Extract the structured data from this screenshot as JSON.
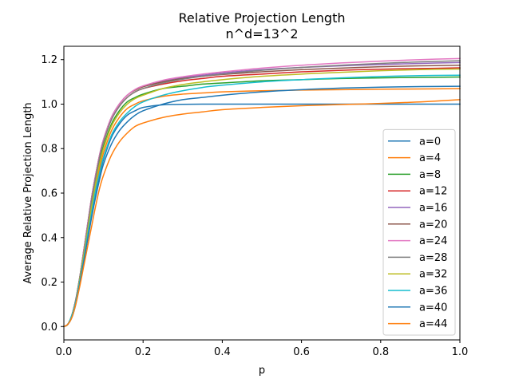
{
  "chart_data": {
    "type": "line",
    "title": "Relative Projection Length",
    "subtitle": "n^d=13^2",
    "xlabel": "p",
    "ylabel": "Average Relative Projection Length",
    "xlim": [
      0.0,
      1.0
    ],
    "ylim": [
      -0.06,
      1.26
    ],
    "xticks": [
      0.0,
      0.2,
      0.4,
      0.6,
      0.8,
      1.0
    ],
    "xtick_labels": [
      "0.0",
      "0.2",
      "0.4",
      "0.6",
      "0.8",
      "1.0"
    ],
    "yticks": [
      0.0,
      0.2,
      0.4,
      0.6,
      0.8,
      1.0,
      1.2
    ],
    "ytick_labels": [
      "0.0",
      "0.2",
      "0.4",
      "0.6",
      "0.8",
      "1.0",
      "1.2"
    ],
    "grid": false,
    "legend_position": "lower-right",
    "x": [
      0,
      0.01,
      0.02,
      0.03,
      0.04,
      0.05,
      0.06,
      0.07,
      0.08,
      0.09,
      0.1,
      0.12,
      0.14,
      0.16,
      0.18,
      0.2,
      0.25,
      0.3,
      0.35,
      0.4,
      0.5,
      0.6,
      0.7,
      0.8,
      0.9,
      1.0
    ],
    "series": [
      {
        "name": "a=0",
        "color": "#1f77b4",
        "values": [
          0,
          0.01,
          0.05,
          0.11,
          0.2,
          0.3,
          0.41,
          0.51,
          0.6,
          0.68,
          0.75,
          0.85,
          0.91,
          0.95,
          0.97,
          0.985,
          0.997,
          0.999,
          1.0,
          1.0,
          1.0,
          1.0,
          1.0,
          1.0,
          1.0,
          1.0
        ]
      },
      {
        "name": "a=4",
        "color": "#ff7f0e",
        "values": [
          0,
          0.01,
          0.05,
          0.11,
          0.2,
          0.31,
          0.42,
          0.53,
          0.63,
          0.71,
          0.78,
          0.88,
          0.94,
          0.98,
          1.0,
          1.015,
          1.035,
          1.045,
          1.05,
          1.055,
          1.06,
          1.063,
          1.065,
          1.067,
          1.068,
          1.07
        ]
      },
      {
        "name": "a=8",
        "color": "#2ca02c",
        "values": [
          0,
          0.01,
          0.05,
          0.12,
          0.21,
          0.32,
          0.44,
          0.55,
          0.65,
          0.74,
          0.81,
          0.91,
          0.97,
          1.01,
          1.03,
          1.045,
          1.07,
          1.08,
          1.09,
          1.095,
          1.105,
          1.11,
          1.115,
          1.118,
          1.12,
          1.122
        ]
      },
      {
        "name": "a=12",
        "color": "#d62728",
        "values": [
          0,
          0.01,
          0.05,
          0.12,
          0.22,
          0.33,
          0.45,
          0.57,
          0.67,
          0.76,
          0.83,
          0.93,
          0.99,
          1.03,
          1.055,
          1.07,
          1.09,
          1.105,
          1.115,
          1.125,
          1.135,
          1.145,
          1.152,
          1.157,
          1.16,
          1.163
        ]
      },
      {
        "name": "a=16",
        "color": "#9467bd",
        "values": [
          0,
          0.01,
          0.05,
          0.12,
          0.22,
          0.34,
          0.46,
          0.58,
          0.68,
          0.77,
          0.84,
          0.94,
          1.0,
          1.04,
          1.065,
          1.08,
          1.105,
          1.12,
          1.13,
          1.14,
          1.155,
          1.165,
          1.172,
          1.178,
          1.183,
          1.187
        ]
      },
      {
        "name": "a=20",
        "color": "#8c564b",
        "values": [
          0,
          0.01,
          0.05,
          0.12,
          0.22,
          0.34,
          0.46,
          0.58,
          0.68,
          0.77,
          0.84,
          0.94,
          1.0,
          1.04,
          1.063,
          1.078,
          1.1,
          1.115,
          1.125,
          1.133,
          1.145,
          1.155,
          1.162,
          1.168,
          1.172,
          1.175
        ]
      },
      {
        "name": "a=24",
        "color": "#e377c2",
        "values": [
          0,
          0.01,
          0.05,
          0.12,
          0.22,
          0.34,
          0.46,
          0.58,
          0.68,
          0.77,
          0.84,
          0.94,
          1.0,
          1.04,
          1.066,
          1.082,
          1.107,
          1.123,
          1.135,
          1.145,
          1.162,
          1.175,
          1.185,
          1.193,
          1.2,
          1.205
        ]
      },
      {
        "name": "a=28",
        "color": "#7f7f7f",
        "values": [
          0,
          0.01,
          0.05,
          0.12,
          0.22,
          0.33,
          0.45,
          0.57,
          0.67,
          0.76,
          0.83,
          0.93,
          0.99,
          1.03,
          1.055,
          1.07,
          1.095,
          1.112,
          1.125,
          1.135,
          1.152,
          1.165,
          1.175,
          1.183,
          1.19,
          1.195
        ]
      },
      {
        "name": "a=32",
        "color": "#bcbd22",
        "values": [
          0,
          0.01,
          0.05,
          0.11,
          0.21,
          0.32,
          0.43,
          0.54,
          0.64,
          0.73,
          0.8,
          0.9,
          0.96,
          1.0,
          1.025,
          1.04,
          1.07,
          1.088,
          1.1,
          1.11,
          1.125,
          1.135,
          1.143,
          1.15,
          1.155,
          1.158
        ]
      },
      {
        "name": "a=36",
        "color": "#17becf",
        "values": [
          0,
          0.01,
          0.05,
          0.11,
          0.2,
          0.3,
          0.41,
          0.51,
          0.61,
          0.69,
          0.76,
          0.86,
          0.92,
          0.96,
          0.99,
          1.01,
          1.04,
          1.06,
          1.075,
          1.085,
          1.1,
          1.11,
          1.118,
          1.124,
          1.128,
          1.13
        ]
      },
      {
        "name": "a=40",
        "color": "#1f77b4",
        "values": [
          0,
          0.01,
          0.04,
          0.1,
          0.19,
          0.29,
          0.39,
          0.49,
          0.58,
          0.66,
          0.73,
          0.82,
          0.88,
          0.92,
          0.95,
          0.97,
          1.0,
          1.02,
          1.03,
          1.04,
          1.055,
          1.065,
          1.072,
          1.076,
          1.079,
          1.08
        ]
      },
      {
        "name": "a=44",
        "color": "#ff7f0e",
        "values": [
          0,
          0.01,
          0.04,
          0.1,
          0.18,
          0.27,
          0.36,
          0.45,
          0.54,
          0.62,
          0.68,
          0.77,
          0.83,
          0.87,
          0.9,
          0.915,
          0.94,
          0.955,
          0.965,
          0.975,
          0.985,
          0.993,
          0.998,
          1.003,
          1.01,
          1.02
        ]
      }
    ]
  }
}
